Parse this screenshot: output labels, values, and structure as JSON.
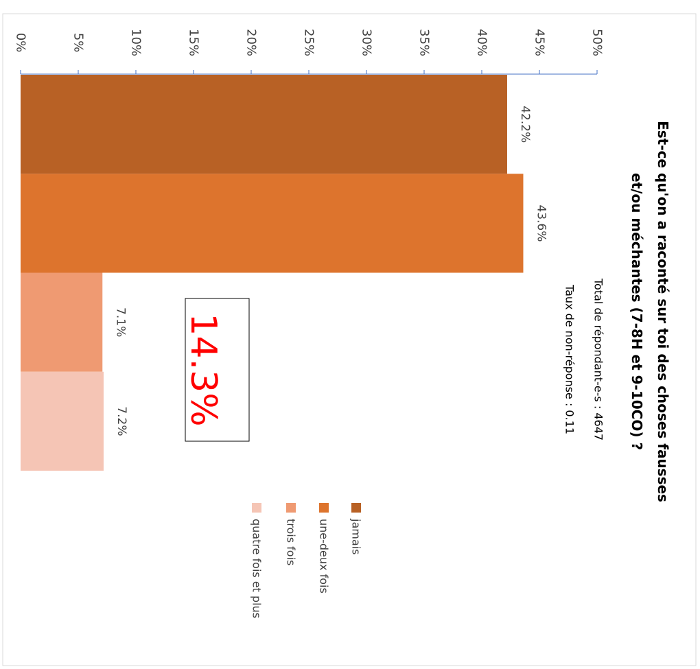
{
  "chart_data": {
    "type": "bar",
    "orientation": "stacked-horizontal-rotated",
    "title": "Est-ce qu'on a raconté sur toi des choses fausses et/ou méchantes (7-8H et 9-10CO) ?",
    "title_lines": [
      "Est-ce qu'on a raconté sur toi des choses fausses",
      "et/ou méchantes (7-8H et 9-10CO) ?"
    ],
    "subtitle_lines": [
      "Total de répondant-e-s : 4647",
      "Taux de non-réponse : 0.11"
    ],
    "categories": [
      "jamais",
      "une-deux fois",
      "trois fois",
      "quatre fois et plus"
    ],
    "values": [
      42.2,
      43.6,
      7.1,
      7.2
    ],
    "data_labels": [
      "42.2%",
      "43.6%",
      "7.1%",
      "7.2%"
    ],
    "colors": [
      "#b86125",
      "#dd742d",
      "#ef9a72",
      "#f5c5b5"
    ],
    "axis": {
      "min": 0,
      "max": 50,
      "ticks": [
        "0%",
        "5%",
        "10%",
        "15%",
        "20%",
        "25%",
        "30%",
        "35%",
        "40%",
        "45%",
        "50%"
      ],
      "axis_color": "#4472c4"
    },
    "annotation": {
      "text": "14.3%",
      "color": "#ff0000"
    },
    "legend": {
      "position": "bottom",
      "entries": [
        "jamais",
        "une-deux fois",
        "trois fois",
        "quatre fois et plus"
      ]
    },
    "grid": false
  }
}
